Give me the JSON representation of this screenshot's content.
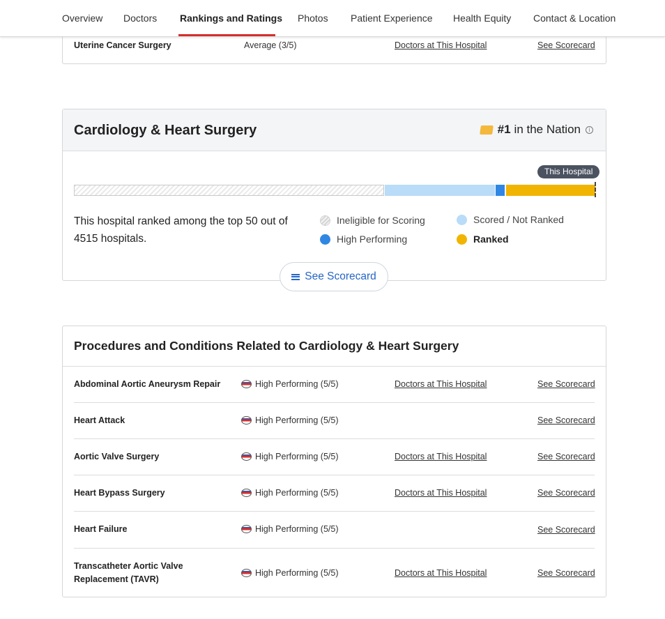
{
  "nav": {
    "tabs": [
      {
        "label": "Overview"
      },
      {
        "label": "Doctors"
      },
      {
        "label": "Rankings and Ratings"
      },
      {
        "label": "Photos"
      },
      {
        "label": "Patient Experience"
      },
      {
        "label": "Health Equity"
      },
      {
        "label": "Contact & Location"
      }
    ],
    "active_tab": "Rankings and Ratings"
  },
  "prev_card": {
    "row": {
      "name": "Uterine Cancer Surgery",
      "rating": "Average (3/5)",
      "doctors_link": "Doctors at This Hospital",
      "scorecard_link": "See Scorecard"
    }
  },
  "specialty": {
    "title": "Cardiology & Heart Surgery",
    "rank_number": "#1",
    "rank_suffix": "in the Nation",
    "marker_label": "This Hospital",
    "summary": "This hospital ranked among the top 50 out of 4515 hospitals.",
    "distribution": {
      "ineligible": 0.595,
      "scored_not_ranked": 0.212,
      "high_performing": 0.019,
      "ranked": 0.174
    },
    "legend": {
      "ineligible": "Ineligible for Scoring",
      "scored": "Scored / Not Ranked",
      "high": "High Performing",
      "ranked": "Ranked"
    },
    "scorecard_button": "See Scorecard"
  },
  "procedures": {
    "title": "Procedures and Conditions Related to Cardiology & Heart Surgery",
    "rows": [
      {
        "name": "Abdominal Aortic Aneurysm Repair",
        "rating": "High Performing (5/5)",
        "doctors_link": "Doctors at This Hospital",
        "scorecard_link": "See Scorecard"
      },
      {
        "name": "Heart Attack",
        "rating": "High Performing (5/5)",
        "doctors_link": "",
        "scorecard_link": "See Scorecard"
      },
      {
        "name": "Aortic Valve Surgery",
        "rating": "High Performing (5/5)",
        "doctors_link": "Doctors at This Hospital",
        "scorecard_link": "See Scorecard"
      },
      {
        "name": "Heart Bypass Surgery",
        "rating": "High Performing (5/5)",
        "doctors_link": "Doctors at This Hospital",
        "scorecard_link": "See Scorecard"
      },
      {
        "name": "Heart Failure",
        "rating": "High Performing (5/5)",
        "doctors_link": "",
        "scorecard_link": "See Scorecard"
      },
      {
        "name_line1": "Transcatheter Aortic Valve",
        "name_line2": "Replacement (TAVR)",
        "rating": "High Performing (5/5)",
        "doctors_link": "Doctors at This Hospital",
        "scorecard_link": "See Scorecard"
      }
    ]
  },
  "colors": {
    "accent_red": "#d32f2f",
    "link_blue": "#2566c4",
    "scored": "#b9dcf8",
    "high_performing": "#2f87e3",
    "ranked": "#f1b400"
  }
}
